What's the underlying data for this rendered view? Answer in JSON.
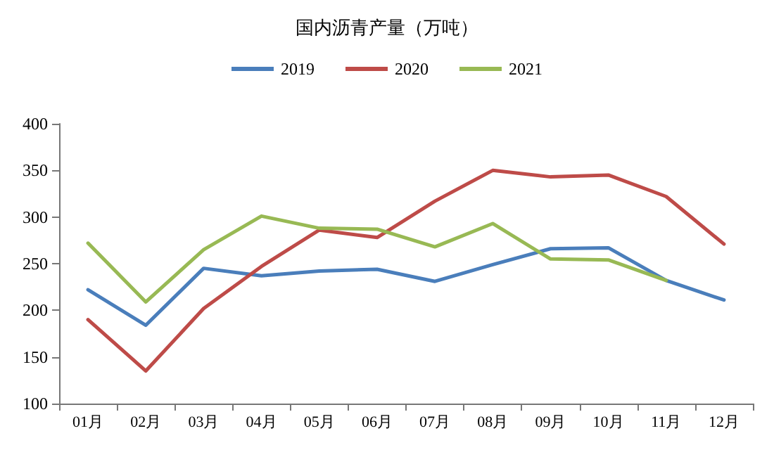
{
  "chart_data": {
    "type": "line",
    "title": "国内沥青产量（万吨）",
    "categories": [
      "01月",
      "02月",
      "03月",
      "04月",
      "05月",
      "06月",
      "07月",
      "08月",
      "09月",
      "10月",
      "11月",
      "12月"
    ],
    "series": [
      {
        "name": "2019",
        "color": "#4a7ebb",
        "values": [
          222,
          184,
          245,
          237,
          242,
          244,
          231,
          249,
          266,
          267,
          232,
          211
        ]
      },
      {
        "name": "2020",
        "color": "#be4b48",
        "values": [
          190,
          135,
          202,
          247,
          286,
          278,
          317,
          350,
          343,
          345,
          322,
          271
        ]
      },
      {
        "name": "2021",
        "color": "#98b954",
        "values": [
          272,
          209,
          265,
          301,
          288,
          287,
          268,
          293,
          255,
          254,
          232,
          null
        ]
      }
    ],
    "ylim": [
      100,
      400
    ],
    "yticks": [
      100,
      150,
      200,
      250,
      300,
      350,
      400
    ],
    "grid": false,
    "legend": "top",
    "marker": "none",
    "line_style": "solid"
  }
}
